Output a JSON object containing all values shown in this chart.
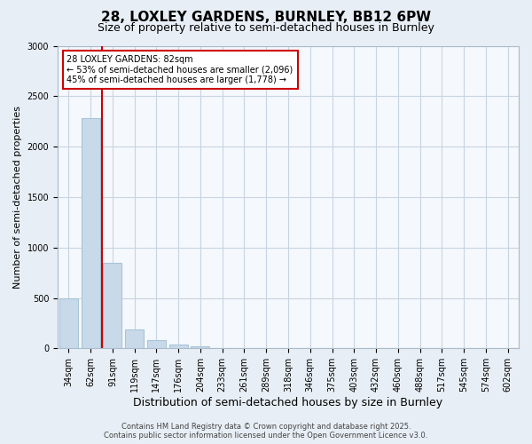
{
  "title_line1": "28, LOXLEY GARDENS, BURNLEY, BB12 6PW",
  "title_line2": "Size of property relative to semi-detached houses in Burnley",
  "xlabel": "Distribution of semi-detached houses by size in Burnley",
  "ylabel": "Number of semi-detached properties",
  "categories": [
    "34sqm",
    "62sqm",
    "91sqm",
    "119sqm",
    "147sqm",
    "176sqm",
    "204sqm",
    "233sqm",
    "261sqm",
    "289sqm",
    "318sqm",
    "346sqm",
    "375sqm",
    "403sqm",
    "432sqm",
    "460sqm",
    "488sqm",
    "517sqm",
    "545sqm",
    "574sqm",
    "602sqm"
  ],
  "values": [
    500,
    2280,
    850,
    190,
    80,
    40,
    20,
    5,
    3,
    2,
    1,
    1,
    0,
    0,
    0,
    0,
    0,
    0,
    0,
    0,
    0
  ],
  "bar_color": "#c8daea",
  "bar_edge_color": "#a8c4d8",
  "vline_color": "#cc0000",
  "vline_x": 1.5,
  "annotation_text": "28 LOXLEY GARDENS: 82sqm\n← 53% of semi-detached houses are smaller (2,096)\n45% of semi-detached houses are larger (1,778) →",
  "annotation_box_facecolor": "#ffffff",
  "annotation_box_edgecolor": "#cc0000",
  "ylim": [
    0,
    3000
  ],
  "yticks": [
    0,
    500,
    1000,
    1500,
    2000,
    2500,
    3000
  ],
  "bg_color": "#e8eef5",
  "plot_bg_color": "#f5f8fc",
  "grid_color": "#c8d4e4",
  "footer_line1": "Contains HM Land Registry data © Crown copyright and database right 2025.",
  "footer_line2": "Contains public sector information licensed under the Open Government Licence v3.0.",
  "title_fontsize": 11,
  "subtitle_fontsize": 9,
  "xlabel_fontsize": 9,
  "ylabel_fontsize": 8,
  "tick_fontsize": 7,
  "annot_fontsize": 7,
  "footer_fontsize": 6
}
